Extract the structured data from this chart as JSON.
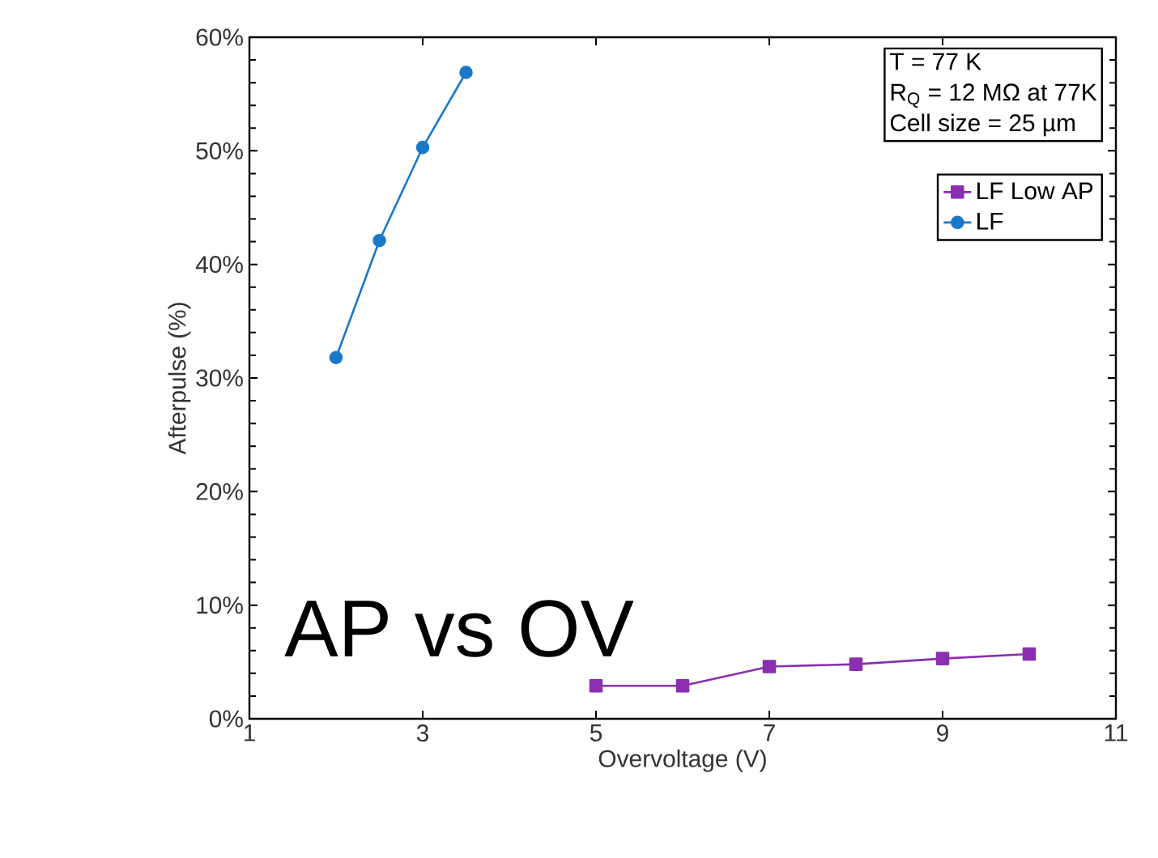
{
  "chart_data": {
    "type": "line",
    "xlabel": "Overvoltage (V)",
    "ylabel": "Afterpulse (%)",
    "xlim": [
      1,
      11
    ],
    "xticks": [
      1,
      3,
      5,
      7,
      9,
      11
    ],
    "ylim": [
      0,
      60
    ],
    "yticks": [
      {
        "value": 0,
        "label": "0%"
      },
      {
        "value": 10,
        "label": "10%"
      },
      {
        "value": 20,
        "label": "20%"
      },
      {
        "value": 30,
        "label": "30%"
      },
      {
        "value": 40,
        "label": "40%"
      },
      {
        "value": 50,
        "label": "50%"
      },
      {
        "value": 60,
        "label": "60%"
      }
    ],
    "series": [
      {
        "name": "LF Low AP",
        "color": "#8a2fb0",
        "marker": "square",
        "x": [
          5,
          6,
          7,
          8,
          9,
          10
        ],
        "values": [
          2.9,
          2.9,
          4.6,
          4.8,
          5.3,
          5.7
        ]
      },
      {
        "name": "LF",
        "color": "#1a78c8",
        "marker": "circle",
        "x": [
          2,
          2.5,
          3,
          3.5
        ],
        "values": [
          31.8,
          42.1,
          50.3,
          56.9
        ]
      }
    ],
    "legend": "top right",
    "grid": false,
    "annotations": [
      "T = 77 K",
      "R$_{Q}$ = 12 MΩ at 77K",
      "Cell size = 25 µm",
      "AP vs OV"
    ]
  }
}
